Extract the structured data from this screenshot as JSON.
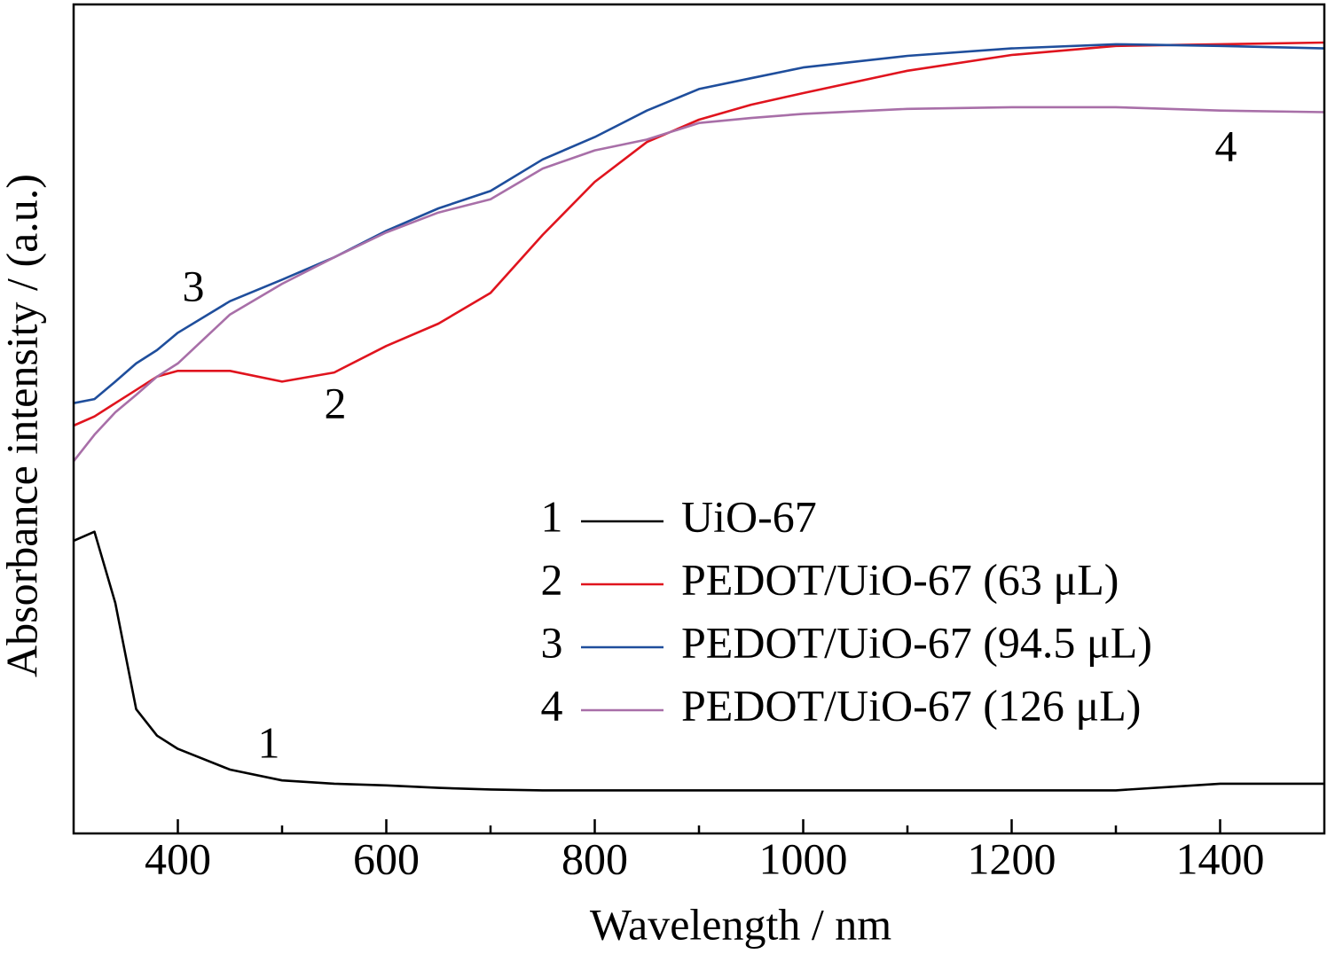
{
  "chart_data": {
    "type": "line",
    "xlabel": "Wavelength / nm",
    "ylabel": "Absorbance intensity / (a.u.)",
    "x": [
      300,
      320,
      340,
      360,
      380,
      400,
      450,
      500,
      550,
      600,
      650,
      700,
      750,
      800,
      850,
      900,
      950,
      1000,
      1100,
      1200,
      1300,
      1400,
      1500
    ],
    "series": [
      {
        "label": "1",
        "name": "UiO-67",
        "color": "#000000",
        "values": [
          35.3,
          36.4,
          27.8,
          15.0,
          11.8,
          10.2,
          7.7,
          6.4,
          6.0,
          5.8,
          5.5,
          5.3,
          5.2,
          5.2,
          5.2,
          5.2,
          5.2,
          5.2,
          5.2,
          5.2,
          5.2,
          6.0,
          6.0
        ]
      },
      {
        "label": "2",
        "name": "PEDOT/UiO-67 (63 μL)",
        "color": "#e0141e",
        "values": [
          49.2,
          50.3,
          51.9,
          53.5,
          55.1,
          55.8,
          55.8,
          54.5,
          55.6,
          58.8,
          61.5,
          65.2,
          72.2,
          78.6,
          83.4,
          86.1,
          87.9,
          89.3,
          92.0,
          93.9,
          95.0,
          95.2,
          95.4
        ]
      },
      {
        "label": "3",
        "name": "PEDOT/UiO-67 (94.5 μL)",
        "color": "#1f4e9c",
        "values": [
          51.9,
          52.4,
          54.5,
          56.7,
          58.3,
          60.4,
          64.2,
          66.8,
          69.5,
          72.7,
          75.4,
          77.5,
          81.3,
          84.0,
          87.2,
          89.8,
          91.1,
          92.4,
          93.8,
          94.7,
          95.2,
          95.0,
          94.7
        ]
      },
      {
        "label": "4",
        "name": "PEDOT/UiO-67 (126 μL)",
        "color": "#a86fa8",
        "values": [
          44.9,
          48.1,
          50.8,
          52.9,
          55.1,
          56.7,
          62.6,
          66.3,
          69.5,
          72.5,
          74.9,
          76.5,
          80.2,
          82.4,
          83.7,
          85.7,
          86.3,
          86.8,
          87.4,
          87.6,
          87.6,
          87.2,
          87.0
        ]
      }
    ],
    "annotations": [
      "3",
      "2",
      "1",
      "4"
    ],
    "xlim": [
      300,
      1500
    ],
    "ylim": [
      0,
      100
    ],
    "xticks": [
      400,
      600,
      800,
      1000,
      1200,
      1400
    ],
    "xminor_ticks": [
      500,
      700,
      900,
      1100,
      1300
    ],
    "grid": false,
    "legend": "lower right"
  }
}
